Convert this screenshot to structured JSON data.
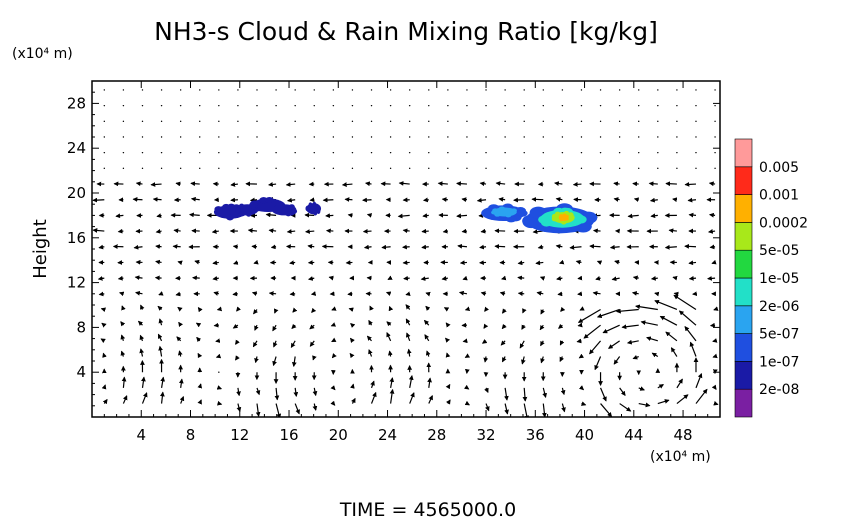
{
  "chart_data": {
    "type": "heatmap",
    "title": "NH3-s Cloud & Rain Mixing Ratio [kg/kg]",
    "ylabel": "Height",
    "y_unit_label": "(x10⁴ m)",
    "x_unit_label": "(x10⁴ m)",
    "xlim": [
      0,
      51
    ],
    "ylim": [
      0,
      30
    ],
    "x_ticks": [
      4,
      8,
      12,
      16,
      20,
      24,
      28,
      32,
      36,
      40,
      44,
      48
    ],
    "y_ticks": [
      4,
      8,
      12,
      16,
      20,
      24,
      28
    ],
    "grid": false,
    "legend_position": "right",
    "color_levels": [
      "2e-08",
      "1e-07",
      "5e-07",
      "2e-06",
      "1e-05",
      "5e-05",
      "0.0002",
      "0.001",
      "0.005"
    ],
    "colorbar_colors": [
      "#7a1fa2",
      "#1a1aa6",
      "#1f4fe0",
      "#2aa4f0",
      "#22e0c8",
      "#22d840",
      "#a8e81a",
      "#ffb000",
      "#ff2a1a",
      "#ff9a9a"
    ],
    "clouds": [
      {
        "x": 11.2,
        "y": 18.3,
        "rx": 1.3,
        "ry": 0.6,
        "level": 1
      },
      {
        "x": 12.6,
        "y": 18.5,
        "rx": 0.9,
        "ry": 0.5,
        "level": 1
      },
      {
        "x": 14.3,
        "y": 18.9,
        "rx": 1.4,
        "ry": 0.6,
        "level": 1
      },
      {
        "x": 15.6,
        "y": 18.5,
        "rx": 1.0,
        "ry": 0.5,
        "level": 1
      },
      {
        "x": 18.0,
        "y": 18.6,
        "rx": 0.6,
        "ry": 0.5,
        "level": 1
      },
      {
        "x": 33.4,
        "y": 18.2,
        "rx": 1.8,
        "ry": 0.7,
        "level": 2
      },
      {
        "x": 33.5,
        "y": 18.3,
        "rx": 1.0,
        "ry": 0.4,
        "level": 3
      },
      {
        "x": 38.0,
        "y": 17.6,
        "rx": 2.8,
        "ry": 1.2,
        "level": 2
      },
      {
        "x": 38.2,
        "y": 17.7,
        "rx": 1.8,
        "ry": 0.8,
        "level": 4
      },
      {
        "x": 38.3,
        "y": 17.8,
        "rx": 0.9,
        "ry": 0.5,
        "level": 6
      },
      {
        "x": 38.3,
        "y": 17.8,
        "rx": 0.4,
        "ry": 0.3,
        "level": 7
      }
    ],
    "time_label": "TIME  =  4565000.0"
  }
}
